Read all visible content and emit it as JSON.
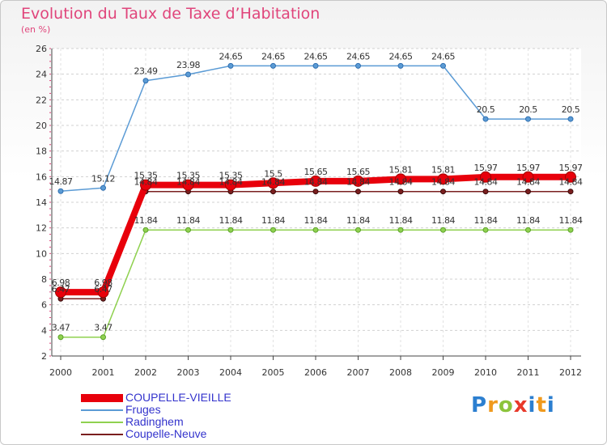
{
  "title": "Evolution du Taux de Taxe d’Habitation",
  "unit": "(en %)",
  "logo_text": "Proxiti",
  "chart_data": {
    "type": "line",
    "title": "Evolution du Taux de Taxe d’Habitation",
    "subtitle": "(en %)",
    "x": [
      "2000",
      "2001",
      "2002",
      "2003",
      "2004",
      "2005",
      "2006",
      "2007",
      "2008",
      "2009",
      "2010",
      "2011",
      "2012"
    ],
    "y_ticks": [
      "2",
      "4",
      "6",
      "8",
      "10",
      "12",
      "14",
      "16",
      "18",
      "20",
      "22",
      "24",
      "26"
    ],
    "ylim": [
      2,
      26
    ],
    "grid": "y-dashed",
    "legend_position": "bottom-left",
    "series": [
      {
        "name": "COUPELLE-VIEILLE",
        "color": "#e8000b",
        "labels": true,
        "values": [
          6.98,
          6.98,
          15.35,
          15.35,
          15.35,
          15.5,
          15.65,
          15.65,
          15.81,
          15.81,
          15.97,
          15.97,
          15.97
        ],
        "value_labels": [
          "6.98",
          "6.98",
          "15.35",
          "15.35",
          "15.35",
          "15.5",
          "15.65",
          "15.65",
          "15.81",
          "15.81",
          "15.97",
          "15.97",
          "15.97"
        ]
      },
      {
        "name": "Fruges",
        "color": "#5b9bd5",
        "labels": true,
        "values": [
          14.87,
          15.12,
          23.49,
          23.98,
          24.65,
          24.65,
          24.65,
          24.65,
          24.65,
          24.65,
          20.5,
          20.5,
          20.5
        ],
        "value_labels": [
          "14.87",
          "15.12",
          "23.49",
          "23.98",
          "24.65",
          "24.65",
          "24.65",
          "24.65",
          "24.65",
          "24.65",
          "20.5",
          "20.5",
          "20.5"
        ]
      },
      {
        "name": "Radinghem",
        "color": "#8fd14f",
        "labels": true,
        "values": [
          3.47,
          3.47,
          11.84,
          11.84,
          11.84,
          11.84,
          11.84,
          11.84,
          11.84,
          11.84,
          11.84,
          11.84,
          11.84
        ],
        "value_labels": [
          "3.47",
          "3.47",
          "11.84",
          "11.84",
          "11.84",
          "11.84",
          "11.84",
          "11.84",
          "11.84",
          "11.84",
          "11.84",
          "11.84",
          "11.84"
        ]
      },
      {
        "name": "Coupelle-Neuve",
        "color": "#7a1f1f",
        "labels": true,
        "values": [
          6.47,
          6.47,
          14.84,
          14.84,
          14.84,
          14.84,
          14.84,
          14.84,
          14.84,
          14.84,
          14.84,
          14.84,
          14.84
        ],
        "value_labels": [
          "6.47",
          "6.47",
          "14.84",
          "14.84",
          "14.84",
          "14.84",
          "14.84",
          "14.84",
          "14.84",
          "14.84",
          "14.84",
          "14.84",
          "14.84"
        ]
      }
    ]
  }
}
